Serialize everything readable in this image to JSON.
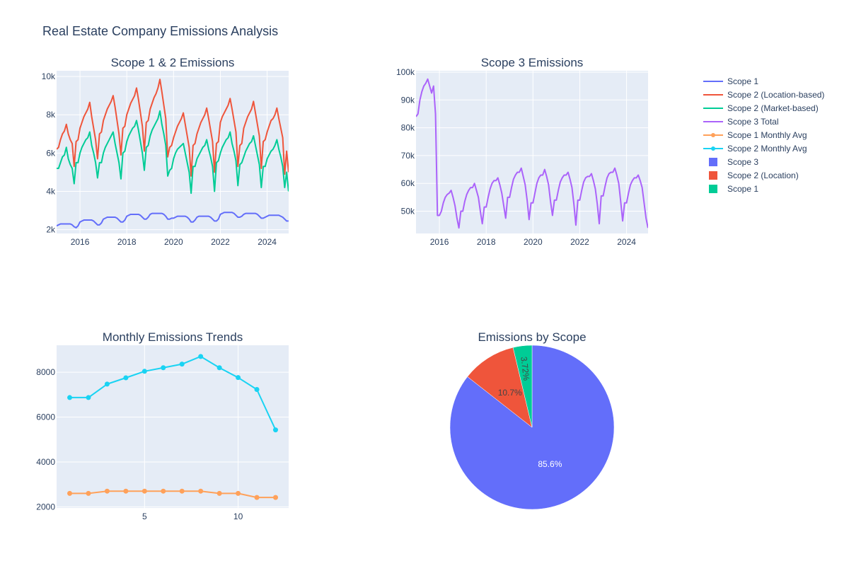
{
  "title": "Real Estate Company Emissions Analysis",
  "colors": {
    "scope1": "#636efa",
    "scope2_location": "#ef553b",
    "scope2_market": "#00cc96",
    "scope3": "#ab63fa",
    "scope1_avg": "#ffa15a",
    "scope2_avg": "#19d3f3",
    "plot_bg": "#e5ecf6",
    "text": "#2a3f5f"
  },
  "legend": {
    "items": [
      {
        "label": "Scope 1",
        "kind": "line",
        "color": "#636efa"
      },
      {
        "label": "Scope 2 (Location-based)",
        "kind": "line",
        "color": "#ef553b"
      },
      {
        "label": "Scope 2 (Market-based)",
        "kind": "line",
        "color": "#00cc96"
      },
      {
        "label": "Scope 3 Total",
        "kind": "line",
        "color": "#ab63fa"
      },
      {
        "label": "Scope 1 Monthly Avg",
        "kind": "line-marker",
        "color": "#ffa15a"
      },
      {
        "label": "Scope 2 Monthly Avg",
        "kind": "line-marker",
        "color": "#19d3f3"
      },
      {
        "label": "Scope 3",
        "kind": "box",
        "color": "#636efa"
      },
      {
        "label": "Scope 2 (Location)",
        "kind": "box",
        "color": "#ef553b"
      },
      {
        "label": "Scope 1",
        "kind": "box",
        "color": "#00cc96"
      }
    ]
  },
  "chart_data": [
    {
      "type": "line",
      "title": "Scope 1 & 2 Emissions",
      "x_axis": "date",
      "x_start": "2015-01",
      "x_end": "2024-12",
      "xlim": [
        2015.0,
        2024.92
      ],
      "xticks": [
        2016,
        2018,
        2020,
        2022,
        2024
      ],
      "xtick_labels": [
        "2016",
        "2018",
        "2020",
        "2022",
        "2024"
      ],
      "ylim": [
        1800,
        10300
      ],
      "yticks": [
        2000,
        4000,
        6000,
        8000,
        10000
      ],
      "ytick_labels": [
        "2k",
        "4k",
        "6k",
        "8k",
        "10k"
      ],
      "series": [
        {
          "name": "Scope 1",
          "color": "#636efa",
          "values": [
            2200,
            2250,
            2300,
            2300,
            2300,
            2300,
            2300,
            2300,
            2250,
            2150,
            2100,
            2200,
            2400,
            2450,
            2500,
            2500,
            2500,
            2500,
            2500,
            2450,
            2350,
            2250,
            2250,
            2350,
            2550,
            2600,
            2650,
            2650,
            2650,
            2650,
            2650,
            2600,
            2500,
            2400,
            2400,
            2500,
            2700,
            2750,
            2800,
            2800,
            2800,
            2800,
            2800,
            2750,
            2650,
            2550,
            2550,
            2650,
            2800,
            2850,
            2850,
            2850,
            2850,
            2850,
            2850,
            2800,
            2700,
            2550,
            2550,
            2600,
            2600,
            2650,
            2700,
            2700,
            2700,
            2700,
            2700,
            2650,
            2550,
            2400,
            2400,
            2500,
            2650,
            2700,
            2700,
            2700,
            2700,
            2700,
            2700,
            2650,
            2550,
            2450,
            2450,
            2550,
            2800,
            2850,
            2900,
            2900,
            2900,
            2900,
            2900,
            2850,
            2750,
            2650,
            2650,
            2700,
            2800,
            2850,
            2850,
            2850,
            2850,
            2850,
            2850,
            2800,
            2700,
            2600,
            2600,
            2650,
            2700,
            2750,
            2750,
            2750,
            2750,
            2750,
            2750,
            2700,
            2650,
            2550,
            2450,
            2450
          ]
        },
        {
          "name": "Scope 2 (Location-based)",
          "color": "#ef553b",
          "values": [
            6200,
            6300,
            6700,
            7000,
            7150,
            7500,
            7000,
            6700,
            6500,
            5300,
            6600,
            6700,
            7300,
            7600,
            7900,
            8100,
            8300,
            8650,
            7900,
            7300,
            6700,
            5700,
            7000,
            7100,
            7700,
            8000,
            8300,
            8500,
            8700,
            9000,
            8400,
            7700,
            7000,
            5900,
            7300,
            7400,
            8000,
            8300,
            8600,
            8800,
            9000,
            9400,
            8800,
            8100,
            7400,
            6100,
            7600,
            7700,
            8300,
            8600,
            8900,
            9100,
            9400,
            9850,
            9200,
            8500,
            7800,
            5800,
            6300,
            6400,
            6800,
            7100,
            7400,
            7600,
            7800,
            8100,
            7500,
            6900,
            6300,
            4800,
            6400,
            6500,
            7000,
            7300,
            7600,
            7800,
            8000,
            8350,
            7800,
            7200,
            6600,
            5000,
            6500,
            6600,
            7600,
            7900,
            8100,
            8300,
            8500,
            8850,
            8300,
            7700,
            7100,
            5300,
            6400,
            6500,
            7300,
            7600,
            7900,
            8100,
            8300,
            8700,
            8100,
            7500,
            6900,
            5200,
            6600,
            6700,
            7100,
            7400,
            7700,
            7800,
            8000,
            8350,
            7800,
            7300,
            6800,
            4900,
            6100,
            5000
          ]
        },
        {
          "name": "Scope 2 (Market-based)",
          "color": "#00cc96",
          "values": [
            5200,
            5200,
            5500,
            5800,
            5900,
            6300,
            5700,
            5400,
            5200,
            4400,
            5500,
            5500,
            6000,
            6300,
            6500,
            6700,
            6800,
            7100,
            6400,
            6000,
            5500,
            4700,
            5500,
            5500,
            6000,
            6300,
            6500,
            6700,
            6900,
            7100,
            6500,
            6000,
            5500,
            4650,
            6000,
            6100,
            6600,
            6900,
            7100,
            7300,
            7400,
            7700,
            7200,
            6600,
            6000,
            5100,
            6300,
            6400,
            6900,
            7200,
            7400,
            7600,
            7800,
            8200,
            7500,
            7000,
            6400,
            4800,
            5100,
            5200,
            5700,
            6000,
            6200,
            6300,
            6400,
            6500,
            6000,
            5500,
            5000,
            3900,
            5300,
            5300,
            5700,
            5900,
            6100,
            6300,
            6400,
            6700,
            6200,
            5800,
            5300,
            4000,
            5500,
            5600,
            6000,
            6300,
            6500,
            6700,
            6800,
            7100,
            6500,
            6100,
            5600,
            4300,
            5400,
            5500,
            5800,
            6100,
            6300,
            6500,
            6600,
            6900,
            6400,
            5900,
            5400,
            4200,
            5300,
            5300,
            5700,
            5900,
            6100,
            6200,
            6400,
            6700,
            6200,
            5800,
            5300,
            4200,
            5000,
            4000
          ]
        }
      ]
    },
    {
      "type": "line",
      "title": "Scope 3 Emissions",
      "x_axis": "date",
      "x_start": "2015-01",
      "x_end": "2024-12",
      "xlim": [
        2015.0,
        2024.92
      ],
      "xticks": [
        2016,
        2018,
        2020,
        2022,
        2024
      ],
      "xtick_labels": [
        "2016",
        "2018",
        "2020",
        "2022",
        "2024"
      ],
      "ylim": [
        42000,
        100500
      ],
      "yticks": [
        50000,
        60000,
        70000,
        80000,
        90000,
        100000
      ],
      "ytick_labels": [
        "50k",
        "60k",
        "70k",
        "80k",
        "90k",
        "100k"
      ],
      "series": [
        {
          "name": "Scope 3 Total",
          "color": "#ab63fa",
          "values": [
            84000,
            85000,
            90000,
            93000,
            95000,
            96000,
            97500,
            95000,
            92500,
            95000,
            85000,
            48500,
            48500,
            50000,
            53000,
            55000,
            56000,
            56500,
            57500,
            55000,
            52000,
            47500,
            44000,
            50000,
            50000,
            53500,
            56000,
            57500,
            58500,
            58500,
            60000,
            57500,
            55000,
            50000,
            45500,
            51500,
            51500,
            55000,
            58000,
            60000,
            61000,
            61000,
            62000,
            59500,
            56500,
            52000,
            47500,
            55000,
            55000,
            58500,
            61500,
            63000,
            64000,
            64000,
            65500,
            62500,
            59500,
            54000,
            47000,
            53000,
            53000,
            56500,
            60000,
            62000,
            63000,
            63000,
            65000,
            62500,
            59500,
            53500,
            48500,
            54000,
            54000,
            57500,
            60500,
            62000,
            63000,
            63000,
            64000,
            61500,
            58500,
            52500,
            45000,
            54000,
            54000,
            57500,
            60500,
            62000,
            62500,
            62500,
            63500,
            61000,
            58000,
            52500,
            45500,
            55500,
            55500,
            59000,
            62000,
            63500,
            64000,
            64000,
            65500,
            63000,
            60000,
            53500,
            46500,
            53000,
            53000,
            56500,
            59500,
            61000,
            62000,
            62000,
            63000,
            61000,
            58500,
            53000,
            47500,
            44000
          ]
        }
      ]
    },
    {
      "type": "line",
      "title": "Monthly Emissions Trends",
      "x": [
        1,
        2,
        3,
        4,
        5,
        6,
        7,
        8,
        9,
        10,
        11,
        12
      ],
      "xlim": [
        0.3,
        12.7
      ],
      "xticks": [
        5,
        10
      ],
      "xtick_labels": [
        "5",
        "10"
      ],
      "ylim": [
        1950,
        9200
      ],
      "yticks": [
        2000,
        4000,
        6000,
        8000
      ],
      "ytick_labels": [
        "2000",
        "4000",
        "6000",
        "8000"
      ],
      "series": [
        {
          "name": "Scope 1 Monthly Avg",
          "color": "#ffa15a",
          "values": [
            2600,
            2600,
            2700,
            2700,
            2700,
            2700,
            2700,
            2700,
            2600,
            2600,
            2420,
            2420
          ]
        },
        {
          "name": "Scope 2 Monthly Avg",
          "color": "#19d3f3",
          "values": [
            6870,
            6870,
            7470,
            7750,
            8040,
            8200,
            8360,
            8700,
            8200,
            7760,
            7230,
            5430
          ]
        }
      ]
    },
    {
      "type": "pie",
      "title": "Emissions by Scope",
      "slices": [
        {
          "name": "Scope 3",
          "value": 85.6,
          "label": "85.6%",
          "color": "#636efa",
          "text_color": "#ffffff"
        },
        {
          "name": "Scope 2 (Location)",
          "value": 10.7,
          "label": "10.7%",
          "color": "#ef553b",
          "text_color": "#444444"
        },
        {
          "name": "Scope 1",
          "value": 3.72,
          "label": "3.72%",
          "color": "#00cc96",
          "text_color": "#444444"
        }
      ]
    }
  ]
}
